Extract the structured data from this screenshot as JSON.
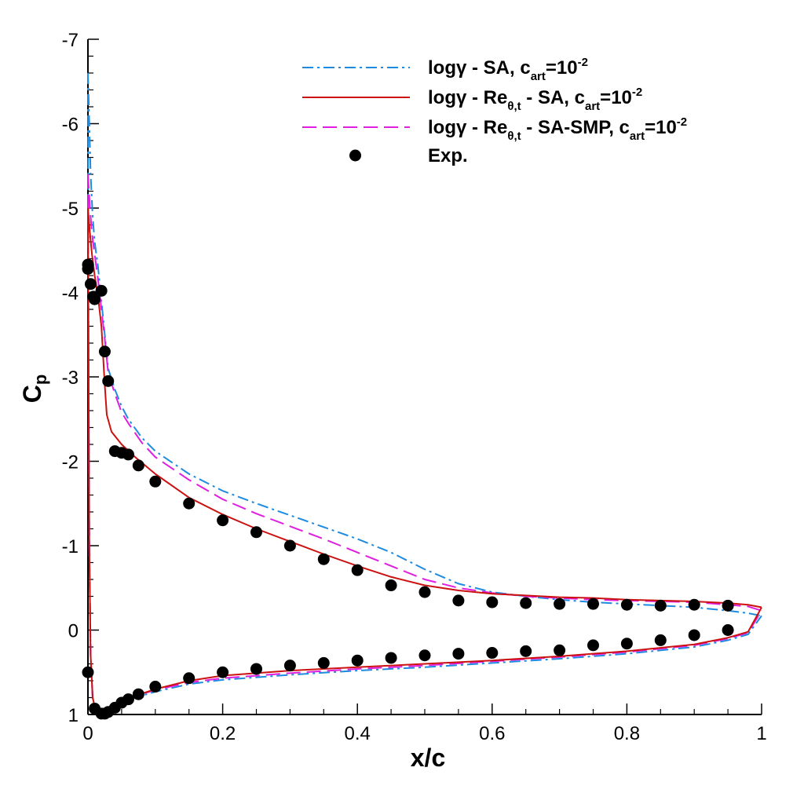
{
  "chart_data": {
    "type": "line",
    "xlabel": "x/c",
    "ylabel_main": "C",
    "ylabel_sub": "p",
    "xlim": [
      0,
      1
    ],
    "ylim": [
      1,
      -7
    ],
    "y_axis_inverted": true,
    "grid": false,
    "legend_position": "top-right",
    "x_ticks": [
      {
        "value": 0,
        "label": "0"
      },
      {
        "value": 0.2,
        "label": "0.2"
      },
      {
        "value": 0.4,
        "label": "0.4"
      },
      {
        "value": 0.6,
        "label": "0.6"
      },
      {
        "value": 0.8,
        "label": "0.8"
      },
      {
        "value": 1,
        "label": "1"
      }
    ],
    "y_ticks": [
      {
        "value": 1,
        "label": "1"
      },
      {
        "value": 0,
        "label": "0"
      },
      {
        "value": -1,
        "label": "-1"
      },
      {
        "value": -2,
        "label": "-2"
      },
      {
        "value": -3,
        "label": "-3"
      },
      {
        "value": -4,
        "label": "-4"
      },
      {
        "value": -5,
        "label": "-5"
      },
      {
        "value": -6,
        "label": "-6"
      },
      {
        "value": -7,
        "label": "-7"
      }
    ],
    "legend": [
      {
        "series_id": "sa",
        "parts": [
          {
            "t": "logγ - SA, c"
          },
          {
            "t": "art",
            "sub": true
          },
          {
            "t": "=10"
          },
          {
            "t": "-2",
            "sup": true
          }
        ]
      },
      {
        "series_id": "re_sa",
        "parts": [
          {
            "t": "logγ - Re"
          },
          {
            "t": "θ,t",
            "sub": true
          },
          {
            "t": " - SA, c"
          },
          {
            "t": "art",
            "sub": true
          },
          {
            "t": "=10"
          },
          {
            "t": "-2",
            "sup": true
          }
        ]
      },
      {
        "series_id": "re_sasmp",
        "parts": [
          {
            "t": "logγ - Re"
          },
          {
            "t": "θ,t",
            "sub": true
          },
          {
            "t": " - SA-SMP, c"
          },
          {
            "t": "art",
            "sub": true
          },
          {
            "t": "=10"
          },
          {
            "t": "-2",
            "sup": true
          }
        ]
      },
      {
        "series_id": "exp",
        "parts": [
          {
            "t": "Exp."
          }
        ]
      }
    ],
    "series": [
      {
        "id": "sa",
        "color": "#1f8be0",
        "dash": "14,5,3,5",
        "upper": [
          [
            0,
            -6.6
          ],
          [
            0.002,
            -6.0
          ],
          [
            0.004,
            -5.4
          ],
          [
            0.007,
            -4.9
          ],
          [
            0.01,
            -4.6
          ],
          [
            0.015,
            -4.3
          ],
          [
            0.02,
            -3.9
          ],
          [
            0.025,
            -3.5
          ],
          [
            0.03,
            -3.1
          ],
          [
            0.04,
            -2.85
          ],
          [
            0.05,
            -2.65
          ],
          [
            0.06,
            -2.5
          ],
          [
            0.08,
            -2.28
          ],
          [
            0.1,
            -2.12
          ],
          [
            0.15,
            -1.85
          ],
          [
            0.2,
            -1.65
          ],
          [
            0.25,
            -1.5
          ],
          [
            0.3,
            -1.36
          ],
          [
            0.35,
            -1.22
          ],
          [
            0.4,
            -1.08
          ],
          [
            0.45,
            -0.92
          ],
          [
            0.5,
            -0.72
          ],
          [
            0.55,
            -0.55
          ],
          [
            0.6,
            -0.45
          ],
          [
            0.65,
            -0.4
          ],
          [
            0.7,
            -0.36
          ],
          [
            0.75,
            -0.33
          ],
          [
            0.8,
            -0.31
          ],
          [
            0.85,
            -0.29
          ],
          [
            0.9,
            -0.27
          ],
          [
            0.95,
            -0.23
          ],
          [
            0.98,
            -0.2
          ],
          [
            1.0,
            -0.17
          ]
        ],
        "lower": [
          [
            0,
            -6.6
          ],
          [
            0.001,
            -3.0
          ],
          [
            0.002,
            -1.0
          ],
          [
            0.004,
            0.3
          ],
          [
            0.007,
            0.8
          ],
          [
            0.012,
            0.97
          ],
          [
            0.02,
            1.0
          ],
          [
            0.03,
            0.95
          ],
          [
            0.05,
            0.86
          ],
          [
            0.07,
            0.8
          ],
          [
            0.1,
            0.73
          ],
          [
            0.15,
            0.64
          ],
          [
            0.2,
            0.59
          ],
          [
            0.3,
            0.53
          ],
          [
            0.4,
            0.48
          ],
          [
            0.5,
            0.44
          ],
          [
            0.6,
            0.39
          ],
          [
            0.7,
            0.34
          ],
          [
            0.8,
            0.28
          ],
          [
            0.9,
            0.2
          ],
          [
            0.95,
            0.12
          ],
          [
            0.98,
            0.05
          ],
          [
            1.0,
            -0.17
          ]
        ]
      },
      {
        "id": "re_sasmp",
        "color": "#e01ee0",
        "dash": "18,8",
        "upper": [
          [
            0,
            -5.4
          ],
          [
            0.003,
            -5.0
          ],
          [
            0.006,
            -4.7
          ],
          [
            0.01,
            -4.45
          ],
          [
            0.015,
            -4.15
          ],
          [
            0.02,
            -3.8
          ],
          [
            0.025,
            -3.45
          ],
          [
            0.03,
            -3.05
          ],
          [
            0.04,
            -2.8
          ],
          [
            0.05,
            -2.58
          ],
          [
            0.06,
            -2.45
          ],
          [
            0.08,
            -2.22
          ],
          [
            0.1,
            -2.05
          ],
          [
            0.15,
            -1.78
          ],
          [
            0.2,
            -1.55
          ],
          [
            0.25,
            -1.38
          ],
          [
            0.3,
            -1.23
          ],
          [
            0.35,
            -1.08
          ],
          [
            0.4,
            -0.92
          ],
          [
            0.45,
            -0.76
          ],
          [
            0.5,
            -0.6
          ],
          [
            0.55,
            -0.5
          ],
          [
            0.6,
            -0.44
          ],
          [
            0.65,
            -0.4
          ],
          [
            0.7,
            -0.38
          ],
          [
            0.75,
            -0.36
          ],
          [
            0.8,
            -0.35
          ],
          [
            0.85,
            -0.34
          ],
          [
            0.9,
            -0.33
          ],
          [
            0.95,
            -0.3
          ],
          [
            0.98,
            -0.28
          ],
          [
            1.0,
            -0.23
          ]
        ],
        "lower": [
          [
            0,
            -5.4
          ],
          [
            0.001,
            -3.0
          ],
          [
            0.002,
            -1.0
          ],
          [
            0.004,
            0.3
          ],
          [
            0.007,
            0.8
          ],
          [
            0.012,
            0.96
          ],
          [
            0.02,
            0.99
          ],
          [
            0.03,
            0.93
          ],
          [
            0.05,
            0.84
          ],
          [
            0.07,
            0.78
          ],
          [
            0.1,
            0.71
          ],
          [
            0.15,
            0.62
          ],
          [
            0.2,
            0.57
          ],
          [
            0.3,
            0.51
          ],
          [
            0.4,
            0.46
          ],
          [
            0.5,
            0.42
          ],
          [
            0.6,
            0.37
          ],
          [
            0.7,
            0.32
          ],
          [
            0.8,
            0.26
          ],
          [
            0.9,
            0.18
          ],
          [
            0.95,
            0.1
          ],
          [
            0.98,
            0.03
          ],
          [
            1.0,
            -0.23
          ]
        ]
      },
      {
        "id": "re_sa",
        "color": "#cc1111",
        "dash": "",
        "upper": [
          [
            0,
            -5.0
          ],
          [
            0.003,
            -4.7
          ],
          [
            0.006,
            -4.45
          ],
          [
            0.01,
            -4.2
          ],
          [
            0.015,
            -3.95
          ],
          [
            0.02,
            -3.6
          ],
          [
            0.025,
            -2.9
          ],
          [
            0.028,
            -2.55
          ],
          [
            0.035,
            -2.35
          ],
          [
            0.05,
            -2.2
          ],
          [
            0.07,
            -2.05
          ],
          [
            0.1,
            -1.85
          ],
          [
            0.15,
            -1.57
          ],
          [
            0.2,
            -1.37
          ],
          [
            0.25,
            -1.2
          ],
          [
            0.3,
            -1.05
          ],
          [
            0.35,
            -0.9
          ],
          [
            0.4,
            -0.76
          ],
          [
            0.45,
            -0.63
          ],
          [
            0.5,
            -0.53
          ],
          [
            0.55,
            -0.47
          ],
          [
            0.6,
            -0.43
          ],
          [
            0.65,
            -0.41
          ],
          [
            0.7,
            -0.39
          ],
          [
            0.75,
            -0.38
          ],
          [
            0.8,
            -0.36
          ],
          [
            0.85,
            -0.35
          ],
          [
            0.9,
            -0.34
          ],
          [
            0.95,
            -0.32
          ],
          [
            0.98,
            -0.3
          ],
          [
            1.0,
            -0.27
          ]
        ],
        "lower": [
          [
            0,
            -5.0
          ],
          [
            0.001,
            -3.0
          ],
          [
            0.002,
            -1.0
          ],
          [
            0.004,
            0.3
          ],
          [
            0.007,
            0.8
          ],
          [
            0.012,
            0.97
          ],
          [
            0.02,
            1.0
          ],
          [
            0.03,
            0.95
          ],
          [
            0.05,
            0.85
          ],
          [
            0.07,
            0.78
          ],
          [
            0.1,
            0.7
          ],
          [
            0.15,
            0.6
          ],
          [
            0.2,
            0.54
          ],
          [
            0.3,
            0.48
          ],
          [
            0.4,
            0.44
          ],
          [
            0.5,
            0.4
          ],
          [
            0.6,
            0.36
          ],
          [
            0.7,
            0.31
          ],
          [
            0.8,
            0.25
          ],
          [
            0.9,
            0.17
          ],
          [
            0.95,
            0.09
          ],
          [
            0.98,
            0.02
          ],
          [
            1.0,
            -0.27
          ]
        ]
      }
    ],
    "experimental": {
      "marker_color": "#000000",
      "points": [
        [
          0.0,
          -4.28
        ],
        [
          0.0,
          -4.33
        ],
        [
          0.004,
          -4.1
        ],
        [
          0.008,
          -3.95
        ],
        [
          0.01,
          -3.92
        ],
        [
          0.02,
          -4.02
        ],
        [
          0.025,
          -3.3
        ],
        [
          0.03,
          -2.95
        ],
        [
          0.04,
          -2.12
        ],
        [
          0.05,
          -2.1
        ],
        [
          0.06,
          -2.08
        ],
        [
          0.075,
          -1.95
        ],
        [
          0.1,
          -1.76
        ],
        [
          0.15,
          -1.5
        ],
        [
          0.2,
          -1.3
        ],
        [
          0.25,
          -1.16
        ],
        [
          0.3,
          -1.0
        ],
        [
          0.35,
          -0.84
        ],
        [
          0.4,
          -0.71
        ],
        [
          0.45,
          -0.53
        ],
        [
          0.5,
          -0.45
        ],
        [
          0.55,
          -0.35
        ],
        [
          0.6,
          -0.33
        ],
        [
          0.65,
          -0.32
        ],
        [
          0.7,
          -0.31
        ],
        [
          0.75,
          -0.31
        ],
        [
          0.8,
          -0.3
        ],
        [
          0.85,
          -0.29
        ],
        [
          0.9,
          -0.3
        ],
        [
          0.95,
          -0.29
        ],
        [
          0.0,
          0.5
        ],
        [
          0.01,
          0.93
        ],
        [
          0.02,
          0.99
        ],
        [
          0.025,
          0.99
        ],
        [
          0.03,
          0.97
        ],
        [
          0.04,
          0.92
        ],
        [
          0.05,
          0.86
        ],
        [
          0.06,
          0.82
        ],
        [
          0.075,
          0.76
        ],
        [
          0.1,
          0.67
        ],
        [
          0.15,
          0.57
        ],
        [
          0.2,
          0.5
        ],
        [
          0.25,
          0.46
        ],
        [
          0.3,
          0.42
        ],
        [
          0.35,
          0.39
        ],
        [
          0.4,
          0.36
        ],
        [
          0.45,
          0.33
        ],
        [
          0.5,
          0.3
        ],
        [
          0.55,
          0.28
        ],
        [
          0.6,
          0.27
        ],
        [
          0.65,
          0.25
        ],
        [
          0.7,
          0.24
        ],
        [
          0.75,
          0.18
        ],
        [
          0.8,
          0.16
        ],
        [
          0.85,
          0.12
        ],
        [
          0.9,
          0.06
        ],
        [
          0.95,
          0.0
        ]
      ]
    }
  }
}
